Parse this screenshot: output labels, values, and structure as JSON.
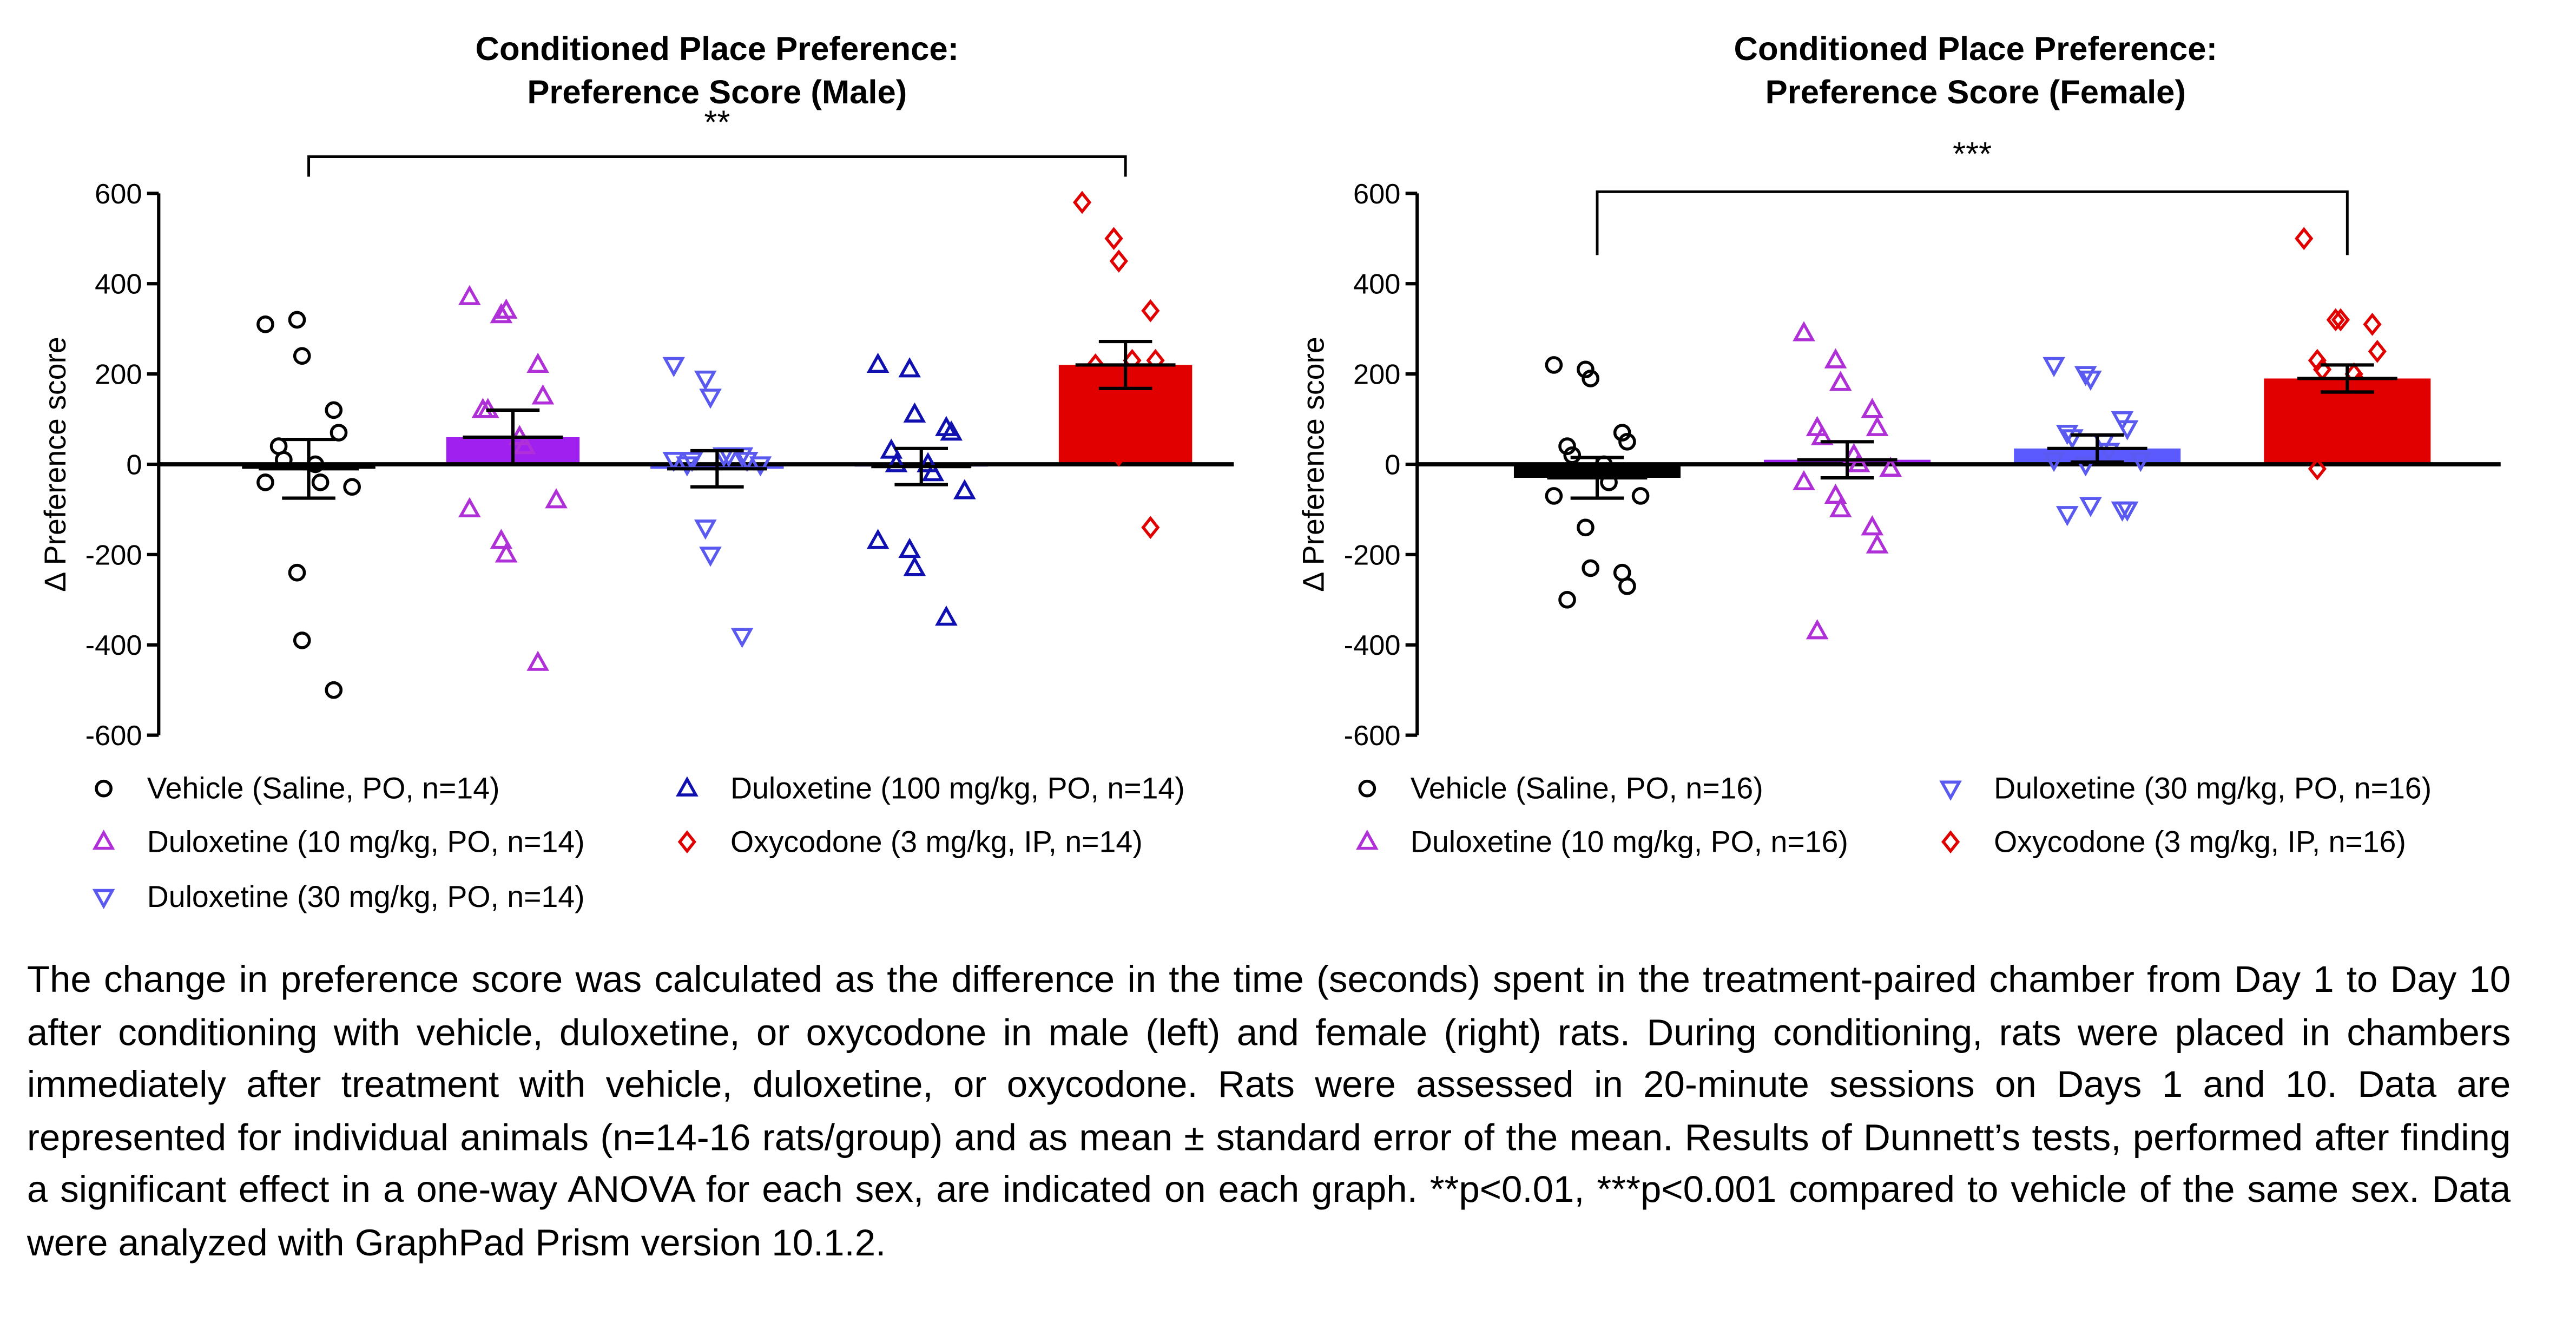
{
  "chart_data": [
    {
      "type": "bar",
      "title": [
        "Conditioned Place Preference:",
        "Preference Score (Male)"
      ],
      "y_label": "Δ Preference score",
      "annotation": "**",
      "ylim": [
        -600,
        600
      ],
      "yticks": [
        600,
        400,
        200,
        0,
        -200,
        -400,
        -600
      ],
      "series": [
        {
          "name": "Vehicle (Saline, PO, n=14)",
          "color": "#000000",
          "bar_color": "#000000",
          "marker": "circle",
          "mean": -10,
          "sem": 65,
          "values": [
            310,
            320,
            240,
            120,
            70,
            40,
            10,
            0,
            -40,
            -50,
            -40,
            -240,
            -390,
            -500
          ]
        },
        {
          "name": "Duloxetine (10 mg/kg, PO, n=14)",
          "color": "#b030d8",
          "bar_color": "#a020f0",
          "marker": "triangle-up",
          "mean": 60,
          "sem": 60,
          "values": [
            370,
            330,
            340,
            220,
            150,
            120,
            120,
            60,
            40,
            -80,
            -100,
            -170,
            -200,
            -440
          ]
        },
        {
          "name": "Duloxetine (30 mg/kg, PO, n=14)",
          "color": "#5a5af0",
          "bar_color": "#5a5aff",
          "marker": "triangle-down",
          "mean": -10,
          "sem": 40,
          "values": [
            220,
            190,
            150,
            20,
            10,
            0,
            10,
            20,
            20,
            0,
            10,
            -140,
            -200,
            -380
          ]
        },
        {
          "name": "Duloxetine (100 mg/kg, PO, n=14)",
          "color": "#1010b0",
          "bar_color": "#1010b0",
          "marker": "triangle-up",
          "mean": -5,
          "sem": 40,
          "values": [
            220,
            210,
            110,
            80,
            70,
            30,
            0,
            0,
            -20,
            -60,
            -170,
            -190,
            -230,
            -340
          ]
        },
        {
          "name": "Oxycodone (3 mg/kg, IP, n=14)",
          "color": "#e00000",
          "bar_color": "#e00000",
          "marker": "diamond",
          "mean": 220,
          "sem": 52,
          "values": [
            580,
            500,
            450,
            340,
            230,
            220,
            200,
            230,
            200,
            100,
            80,
            40,
            20,
            -140
          ]
        }
      ]
    },
    {
      "type": "bar",
      "title": [
        "Conditioned Place Preference:",
        "Preference Score (Female)"
      ],
      "y_label": "Δ Preference score",
      "annotation": "***",
      "ylim": [
        -600,
        600
      ],
      "yticks": [
        600,
        400,
        200,
        0,
        -200,
        -400,
        -600
      ],
      "series": [
        {
          "name": "Vehicle (Saline, PO, n=16)",
          "color": "#000000",
          "bar_color": "#000000",
          "marker": "circle",
          "mean": -30,
          "sem": 45,
          "values": [
            220,
            210,
            190,
            70,
            50,
            40,
            20,
            0,
            -40,
            -70,
            -70,
            -140,
            -230,
            -240,
            -270,
            -300
          ]
        },
        {
          "name": "Duloxetine (10 mg/kg, PO, n=16)",
          "color": "#b030d8",
          "bar_color": "#a020f0",
          "marker": "triangle-up",
          "mean": 10,
          "sem": 40,
          "values": [
            290,
            230,
            180,
            120,
            80,
            80,
            60,
            20,
            0,
            -10,
            -40,
            -70,
            -100,
            -140,
            -180,
            -370
          ]
        },
        {
          "name": "Duloxetine (30 mg/kg, PO, n=16)",
          "color": "#5a5af0",
          "bar_color": "#5a5aff",
          "marker": "triangle-down",
          "mean": 35,
          "sem": 30,
          "values": [
            220,
            200,
            190,
            100,
            80,
            70,
            60,
            50,
            30,
            10,
            10,
            0,
            -90,
            -100,
            -100,
            -110
          ]
        },
        {
          "name": "Oxycodone (3 mg/kg, IP, n=16)",
          "color": "#e00000",
          "bar_color": "#e00000",
          "marker": "diamond",
          "mean": 190,
          "sem": 30,
          "values": [
            500,
            320,
            320,
            310,
            250,
            230,
            210,
            200,
            180,
            140,
            110,
            70,
            60,
            60,
            50,
            -10
          ]
        }
      ]
    }
  ],
  "caption": "The change in preference score was calculated as the difference in the time (seconds) spent in the treatment-paired chamber from Day 1 to Day 10 after conditioning with vehicle, duloxetine, or oxycodone in male (left) and female (right) rats. During conditioning, rats were placed in chambers immediately after treatment with vehicle, duloxetine, or oxycodone. Rats were assessed in 20-minute sessions on Days 1 and 10. Data are represented for individual animals (n=14-16 rats/group) and as mean ± standard error of the mean. Results of Dunnett’s tests, performed after finding a significant effect in a one-way ANOVA for each sex, are indicated on each graph. **p<0.01, ***p<0.001 compared to vehicle of the same sex. Data were analyzed with GraphPad Prism version 10.1.2."
}
